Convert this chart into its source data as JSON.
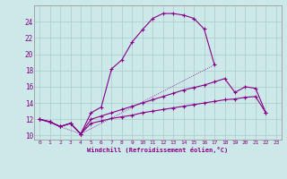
{
  "xlabel": "Windchill (Refroidissement éolien,°C)",
  "bg_color": "#cce8e8",
  "line_color": "#880088",
  "grid_color": "#aacccc",
  "xlim": [
    -0.5,
    23.5
  ],
  "ylim": [
    9.5,
    26.0
  ],
  "xticks": [
    0,
    1,
    2,
    3,
    4,
    5,
    6,
    7,
    8,
    9,
    10,
    11,
    12,
    13,
    14,
    15,
    16,
    17,
    18,
    19,
    20,
    21,
    22,
    23
  ],
  "yticks": [
    10,
    12,
    14,
    16,
    18,
    20,
    22,
    24
  ],
  "line1_x": [
    0,
    1,
    2,
    3,
    4,
    5,
    6,
    7,
    8,
    9,
    10,
    11,
    12,
    13,
    14,
    15,
    16,
    17
  ],
  "line1_y": [
    12.0,
    11.7,
    11.1,
    11.5,
    10.2,
    12.8,
    13.5,
    18.2,
    19.3,
    21.5,
    23.0,
    24.4,
    25.0,
    25.0,
    24.8,
    24.4,
    23.1,
    18.7
  ],
  "line2_x": [
    0,
    4,
    17
  ],
  "line2_y": [
    12.0,
    10.2,
    18.7
  ],
  "line3_x": [
    0,
    1,
    2,
    3,
    4,
    5,
    6,
    7,
    8,
    9,
    10,
    11,
    12,
    13,
    14,
    15,
    16,
    17,
    18,
    19,
    20,
    21,
    22
  ],
  "line3_y": [
    12.0,
    11.7,
    11.1,
    11.5,
    10.2,
    12.0,
    12.4,
    12.8,
    13.2,
    13.6,
    14.0,
    14.4,
    14.8,
    15.2,
    15.6,
    15.9,
    16.2,
    16.6,
    17.0,
    15.3,
    16.0,
    15.8,
    12.8
  ],
  "line4_x": [
    0,
    1,
    2,
    3,
    4,
    5,
    6,
    7,
    8,
    9,
    10,
    11,
    12,
    13,
    14,
    15,
    16,
    17,
    18,
    19,
    20,
    21,
    22
  ],
  "line4_y": [
    12.0,
    11.7,
    11.1,
    11.5,
    10.2,
    11.5,
    11.8,
    12.1,
    12.3,
    12.5,
    12.8,
    13.0,
    13.2,
    13.4,
    13.6,
    13.8,
    14.0,
    14.2,
    14.4,
    14.5,
    14.7,
    14.8,
    12.8
  ]
}
